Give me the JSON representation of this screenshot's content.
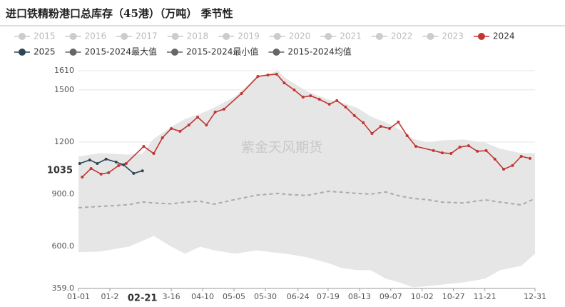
{
  "chart_data": {
    "type": "seasonal-line",
    "title": "进口铁精粉港口总库存（45港）（万吨） 季节性",
    "watermark": "紫金天风期货",
    "xlim": [
      1,
      365
    ],
    "xticks": [
      {
        "value": 1,
        "label": "01-01"
      },
      {
        "value": 26,
        "label": "01-2"
      },
      {
        "value": 75,
        "label": "3-16"
      },
      {
        "value": 100,
        "label": "04-10"
      },
      {
        "value": 125,
        "label": "05-05"
      },
      {
        "value": 150,
        "label": "05-30"
      },
      {
        "value": 176,
        "label": "06-24"
      },
      {
        "value": 200,
        "label": "07-19"
      },
      {
        "value": 225,
        "label": "08-13"
      },
      {
        "value": 250,
        "label": "09-07"
      },
      {
        "value": 275,
        "label": "10-02"
      },
      {
        "value": 300,
        "label": "10-27"
      },
      {
        "value": 325,
        "label": "11-21"
      },
      {
        "value": 365,
        "label": "12-31"
      }
    ],
    "x_pointer": {
      "value": 52,
      "label": "02-21"
    },
    "ylim": [
      359,
      1610
    ],
    "yticks": [
      {
        "value": 359,
        "label": "359.0"
      },
      {
        "value": 600,
        "label": "600.0"
      },
      {
        "value": 900,
        "label": "900.0"
      },
      1200,
      1500,
      1610
    ],
    "y_pointer": 1035,
    "grid": true,
    "series": [
      {
        "name": "2015",
        "color": "#cccccc",
        "hidden": true
      },
      {
        "name": "2016",
        "color": "#cccccc",
        "hidden": true
      },
      {
        "name": "2017",
        "color": "#cccccc",
        "hidden": true
      },
      {
        "name": "2018",
        "color": "#cccccc",
        "hidden": true
      },
      {
        "name": "2019",
        "color": "#cccccc",
        "hidden": true
      },
      {
        "name": "2020",
        "color": "#cccccc",
        "hidden": true
      },
      {
        "name": "2021",
        "color": "#cccccc",
        "hidden": true
      },
      {
        "name": "2022",
        "color": "#cccccc",
        "hidden": true
      },
      {
        "name": "2023",
        "color": "#cccccc",
        "hidden": true
      },
      {
        "name": "2024",
        "color": "#c23531",
        "style": "line",
        "x": [
          4,
          11,
          19,
          25,
          33,
          39,
          53,
          61,
          68,
          75,
          82,
          89,
          96,
          103,
          110,
          117,
          131,
          144,
          152,
          159,
          165,
          173,
          180,
          186,
          193,
          201,
          207,
          214,
          221,
          228,
          235,
          242,
          249,
          256,
          263,
          270,
          284,
          291,
          298,
          305,
          312,
          319,
          326,
          333,
          340,
          347,
          354,
          361
        ],
        "values": [
          999,
          1048,
          1016,
          1024,
          1065,
          1077,
          1175,
          1134,
          1225,
          1278,
          1262,
          1298,
          1343,
          1298,
          1372,
          1389,
          1479,
          1577,
          1585,
          1590,
          1540,
          1499,
          1458,
          1466,
          1446,
          1417,
          1438,
          1401,
          1352,
          1311,
          1249,
          1290,
          1278,
          1315,
          1237,
          1175,
          1151,
          1138,
          1134,
          1171,
          1179,
          1147,
          1151,
          1102,
          1044,
          1065,
          1118,
          1106
        ]
      },
      {
        "name": "2025",
        "color": "#2f4554",
        "style": "line",
        "x": [
          2,
          10,
          16,
          23,
          31,
          37,
          45,
          52
        ],
        "values": [
          1077,
          1097,
          1077,
          1102,
          1085,
          1069,
          1020,
          1035
        ]
      },
      {
        "name": "2015-2024最大值",
        "color": "#666666",
        "style": "band-top",
        "fill": "#e6e6e6",
        "x": [
          1,
          18,
          41,
          52,
          61,
          75,
          86,
          98,
          109,
          126,
          143,
          160,
          166,
          183,
          200,
          211,
          223,
          234,
          246,
          257,
          268,
          280,
          291,
          308,
          325,
          337,
          354,
          365
        ],
        "values": [
          1115,
          1134,
          1126,
          1130,
          1216,
          1286,
          1330,
          1360,
          1395,
          1460,
          1570,
          1606,
          1565,
          1490,
          1442,
          1425,
          1395,
          1345,
          1311,
          1270,
          1215,
          1196,
          1208,
          1212,
          1195,
          1160,
          1134,
          1134
        ]
      },
      {
        "name": "2015-2024最小值",
        "color": "#666666",
        "style": "band-bottom",
        "fill": "#ffffff",
        "x": [
          1,
          18,
          41,
          52,
          61,
          75,
          86,
          98,
          109,
          126,
          143,
          160,
          166,
          183,
          200,
          211,
          223,
          234,
          246,
          257,
          268,
          280,
          291,
          308,
          325,
          337,
          354,
          365
        ],
        "values": [
          569,
          573,
          601,
          634,
          663,
          601,
          561,
          601,
          580,
          561,
          580,
          565,
          561,
          540,
          507,
          478,
          466,
          466,
          417,
          396,
          367,
          375,
          383,
          396,
          417,
          466,
          491,
          561
        ]
      },
      {
        "name": "2015-2024均值",
        "color": "#666666",
        "style": "dashed",
        "stroke": "#aaaaaa",
        "x": [
          1,
          18,
          41,
          52,
          61,
          75,
          86,
          98,
          109,
          126,
          143,
          160,
          166,
          183,
          200,
          211,
          223,
          234,
          246,
          257,
          268,
          280,
          291,
          308,
          325,
          337,
          354,
          365
        ],
        "values": [
          823,
          830,
          840,
          856,
          850,
          845,
          855,
          860,
          843,
          870,
          895,
          905,
          900,
          893,
          917,
          912,
          905,
          901,
          913,
          890,
          876,
          868,
          855,
          850,
          868,
          855,
          839,
          876
        ]
      }
    ]
  }
}
